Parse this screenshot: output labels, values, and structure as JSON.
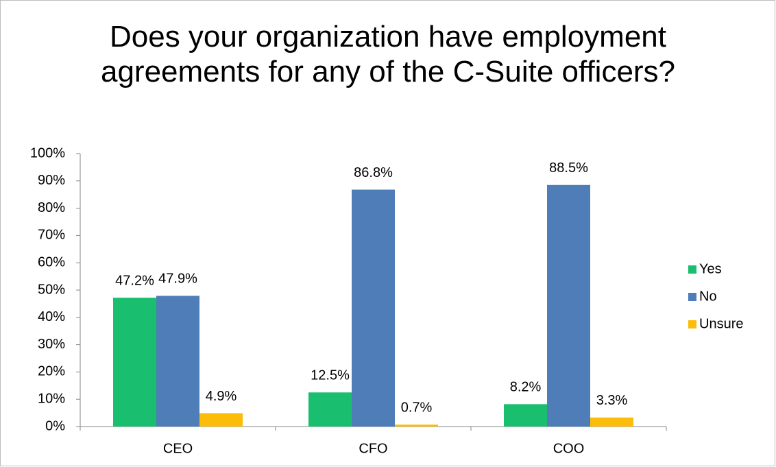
{
  "chart_data": {
    "type": "bar",
    "title": "Does your organization have employment agreements for any of the C-Suite officers?",
    "categories": [
      "CEO",
      "CFO",
      "COO"
    ],
    "series": [
      {
        "name": "Yes",
        "color": "#19bf6e",
        "values": [
          47.2,
          12.5,
          8.2
        ],
        "value_labels": [
          "47.2%",
          "12.5%",
          "8.2%"
        ]
      },
      {
        "name": "No",
        "color": "#4f7db8",
        "values": [
          47.9,
          86.8,
          88.5
        ],
        "value_labels": [
          "47.9%",
          "86.8%",
          "88.5%"
        ]
      },
      {
        "name": "Unsure",
        "color": "#fbbd0a",
        "values": [
          4.9,
          0.7,
          3.3
        ],
        "value_labels": [
          "4.9%",
          "0.7%",
          "3.3%"
        ]
      }
    ],
    "ylim": [
      0,
      100
    ],
    "yticks": [
      {
        "value": 0,
        "label": "0%"
      },
      {
        "value": 10,
        "label": "10%"
      },
      {
        "value": 20,
        "label": "20%"
      },
      {
        "value": 30,
        "label": "30%"
      },
      {
        "value": 40,
        "label": "40%"
      },
      {
        "value": 50,
        "label": "50%"
      },
      {
        "value": 60,
        "label": "60%"
      },
      {
        "value": 70,
        "label": "70%"
      },
      {
        "value": 80,
        "label": "80%"
      },
      {
        "value": 90,
        "label": "90%"
      },
      {
        "value": 100,
        "label": "100%"
      }
    ],
    "grid": false,
    "legend": "right"
  }
}
